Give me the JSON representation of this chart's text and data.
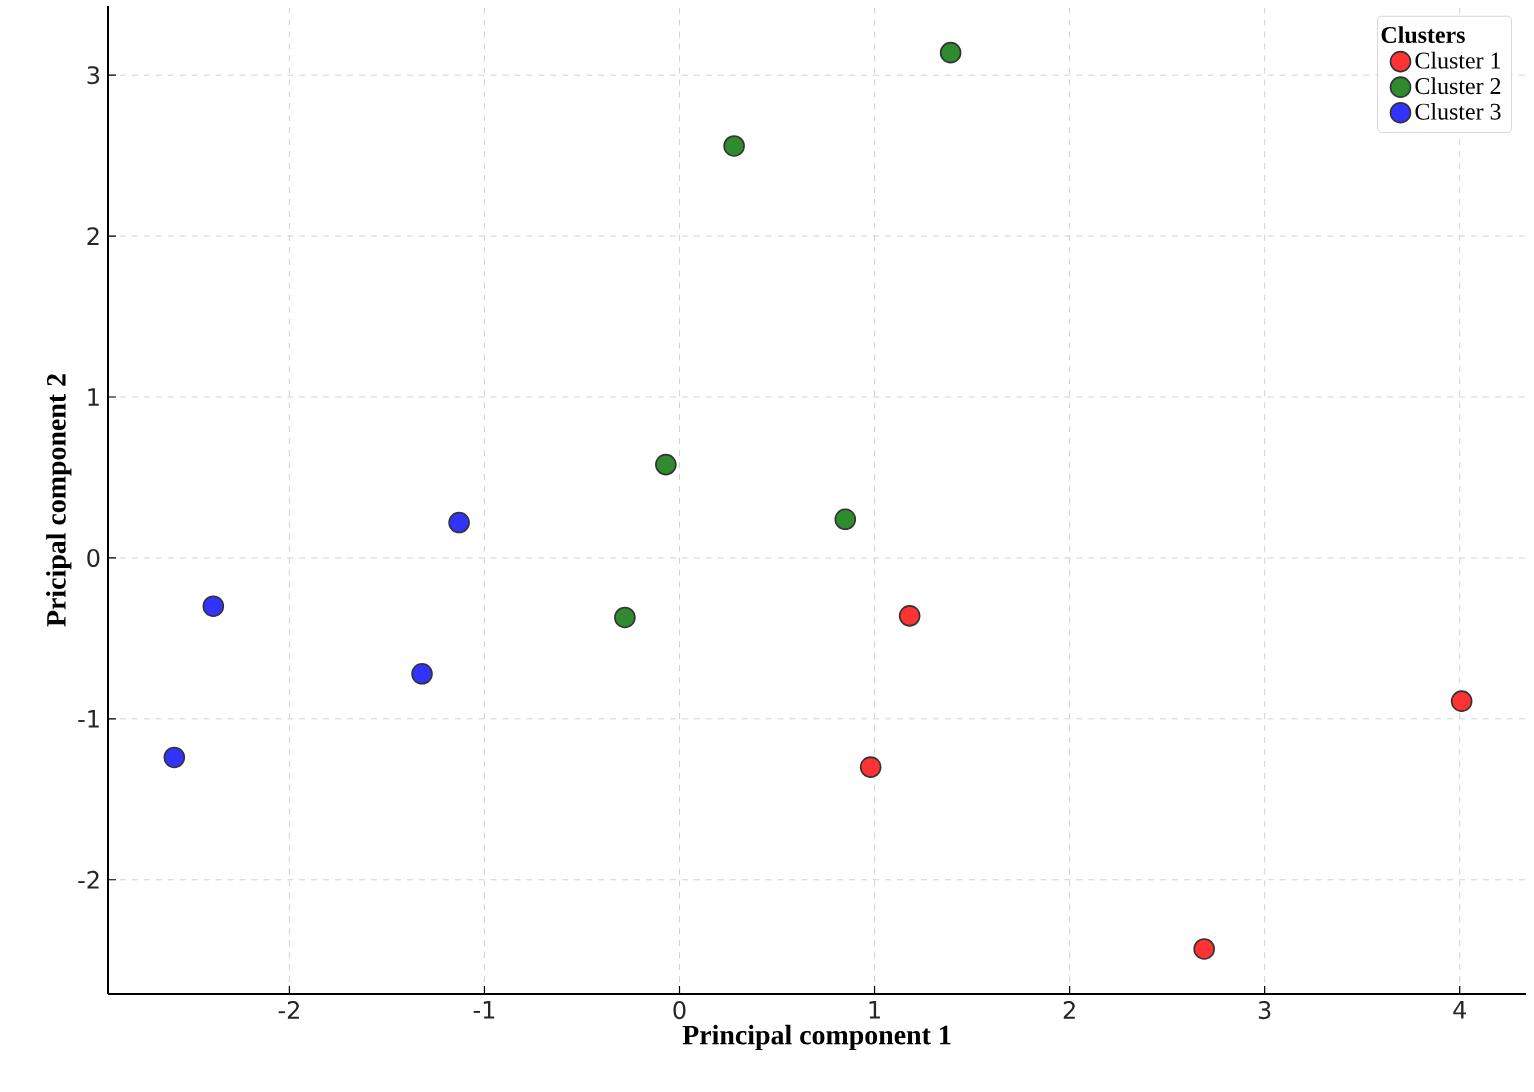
{
  "chart_data": {
    "type": "scatter",
    "xlabel": "Principal component 1",
    "ylabel": "Pricipal component 2",
    "legend_title": "Clusters",
    "xlim": [
      -2.93,
      4.34
    ],
    "ylim": [
      -2.71,
      3.43
    ],
    "xticks": [
      -2,
      -1,
      0,
      1,
      2,
      3,
      4
    ],
    "yticks": [
      -2,
      -1,
      0,
      1,
      2,
      3
    ],
    "grid": true,
    "legend": "top right",
    "marker": "circle",
    "series": [
      {
        "name": "Cluster 1",
        "color": "#ff3333",
        "x": [
          1.18,
          0.98,
          2.69,
          4.01
        ],
        "values": [
          -0.36,
          -1.3,
          -2.43,
          -0.89
        ]
      },
      {
        "name": "Cluster 2",
        "color": "#2e8b2e",
        "x": [
          1.39,
          0.28,
          -0.07,
          0.85,
          -0.28
        ],
        "values": [
          3.14,
          2.56,
          0.58,
          0.24,
          -0.37
        ]
      },
      {
        "name": "Cluster 3",
        "color": "#3333ff",
        "x": [
          -1.13,
          -2.39,
          -1.32,
          -2.59
        ],
        "values": [
          0.22,
          -0.3,
          -0.72,
          -1.24
        ]
      }
    ]
  }
}
